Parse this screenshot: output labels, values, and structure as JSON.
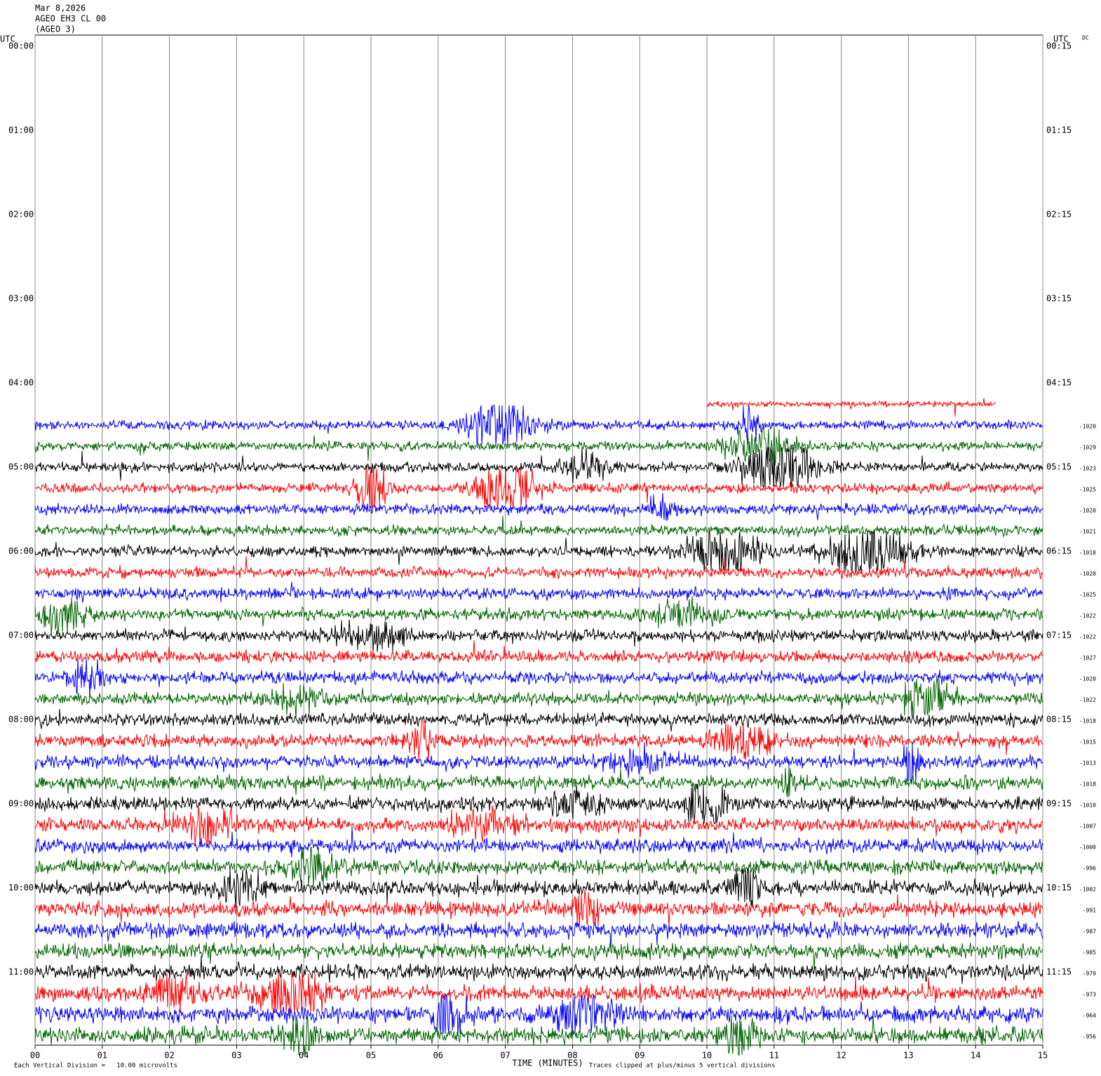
{
  "chart_data": {
    "type": "helicorder",
    "header": [
      "Mar 8,2026",
      "AGEO EH3 CL 00",
      "(AGEO 3)"
    ],
    "left_axis_label": "UTC",
    "right_axis_label": "UTC",
    "dc_label": "DC",
    "row_labels_left": [
      "00:00",
      "01:00",
      "02:00",
      "03:00",
      "04:00",
      "05:00",
      "06:00",
      "07:00",
      "08:00",
      "09:00",
      "10:00",
      "11:00"
    ],
    "row_labels_right": [
      "00:15",
      "01:15",
      "02:15",
      "03:15",
      "04:15",
      "05:15",
      "06:15",
      "07:15",
      "08:15",
      "09:15",
      "10:15",
      "11:15"
    ],
    "xlabel": "TIME (MINUTES)",
    "xlim": [
      0,
      15
    ],
    "xticks": [
      {
        "value": 0,
        "label": "00"
      },
      {
        "value": 1,
        "label": "01"
      },
      {
        "value": 2,
        "label": "02"
      },
      {
        "value": 3,
        "label": "03"
      },
      {
        "value": 4,
        "label": "04"
      },
      {
        "value": 5,
        "label": "05"
      },
      {
        "value": 6,
        "label": "06"
      },
      {
        "value": 7,
        "label": "07"
      },
      {
        "value": 8,
        "label": "08"
      },
      {
        "value": 9,
        "label": "09"
      },
      {
        "value": 10,
        "label": "10"
      },
      {
        "value": 11,
        "label": "11"
      },
      {
        "value": 12,
        "label": "12"
      },
      {
        "value": 13,
        "label": "13"
      },
      {
        "value": 14,
        "label": "14"
      },
      {
        "value": 15,
        "label": "15"
      }
    ],
    "grid": true,
    "footer_left": "Each Vertical Division =   10.00 microvolts",
    "footer_right": "Traces clipped at plus/minus 5 vertical divisions",
    "series": [
      {
        "color": "#ff0000",
        "start": 10,
        "end": 14.3
      },
      {
        "color": "#0000ff",
        "offset": -1020
      },
      {
        "color": "#006400",
        "offset": -1029
      },
      {
        "color": "#000000",
        "offset": -1023
      },
      {
        "color": "#ff0000",
        "offset": -1025
      },
      {
        "color": "#0000ff",
        "offset": -1020
      },
      {
        "color": "#006400",
        "offset": -1021
      },
      {
        "color": "#000000",
        "offset": -1018
      },
      {
        "color": "#ff0000",
        "offset": -1020
      },
      {
        "color": "#0000ff",
        "offset": -1025
      },
      {
        "color": "#006400",
        "offset": -1022
      },
      {
        "color": "#000000",
        "offset": -1022
      },
      {
        "color": "#ff0000",
        "offset": -1027
      },
      {
        "color": "#0000ff",
        "offset": -1020
      },
      {
        "color": "#006400",
        "offset": -1022
      },
      {
        "color": "#000000",
        "offset": -1018
      },
      {
        "color": "#ff0000",
        "offset": -1015
      },
      {
        "color": "#0000ff",
        "offset": -1013
      },
      {
        "color": "#006400",
        "offset": -1018
      },
      {
        "color": "#000000",
        "offset": -1010
      },
      {
        "color": "#ff0000",
        "offset": -1007
      },
      {
        "color": "#0000ff",
        "offset": -1000
      },
      {
        "color": "#006400",
        "offset": -996
      },
      {
        "color": "#000000",
        "offset": -1002
      },
      {
        "color": "#ff0000",
        "offset": -991
      },
      {
        "color": "#0000ff",
        "offset": -987
      },
      {
        "color": "#006400",
        "offset": -985
      },
      {
        "color": "#000000",
        "offset": -979
      },
      {
        "color": "#ff0000",
        "offset": -973
      },
      {
        "color": "#0000ff",
        "offset": -964
      },
      {
        "color": "#006400",
        "offset": -956
      }
    ]
  }
}
